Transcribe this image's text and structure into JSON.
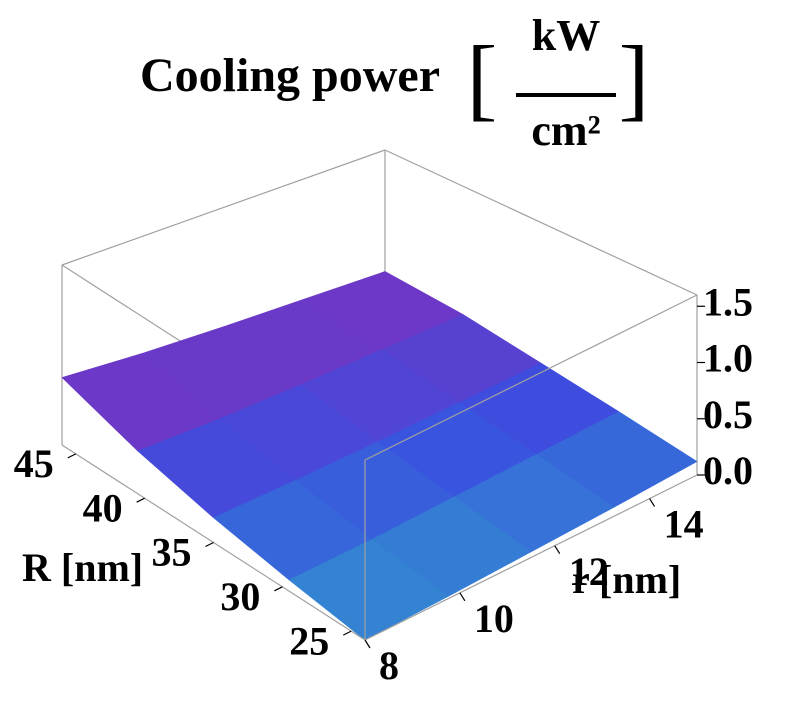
{
  "chart_data": {
    "type": "surface",
    "title": "Cooling power",
    "title_unit": {
      "numerator": "kW",
      "denominator": "cm²"
    },
    "x_label": "r [nm]",
    "y_label": "R [nm]",
    "x": [
      8,
      9.75,
      11.5,
      13.25,
      15
    ],
    "y": [
      24,
      29.5,
      35,
      40.5,
      46
    ],
    "z": [
      [
        0.0,
        0.02,
        0.05,
        0.08,
        0.12
      ],
      [
        0.1,
        0.12,
        0.16,
        0.2,
        0.24
      ],
      [
        0.22,
        0.24,
        0.27,
        0.31,
        0.35
      ],
      [
        0.38,
        0.38,
        0.4,
        0.43,
        0.46
      ],
      [
        0.6,
        0.56,
        0.54,
        0.53,
        0.52
      ]
    ],
    "xlim": [
      8,
      15
    ],
    "ylim": [
      24,
      46
    ],
    "zlim": [
      0,
      1.6
    ],
    "xticks": [
      8,
      10,
      12,
      14
    ],
    "yticks": [
      25,
      30,
      35,
      40,
      45
    ],
    "zticks": [
      {
        "value": 0,
        "label": "0.0"
      },
      {
        "value": 0.5,
        "label": "0.5"
      },
      {
        "value": 1,
        "label": "1.0"
      },
      {
        "value": 1.5,
        "label": "1.5"
      }
    ],
    "colormap": [
      "#2fb0c8",
      "#3a4fe0",
      "#8a2ab8"
    ]
  }
}
